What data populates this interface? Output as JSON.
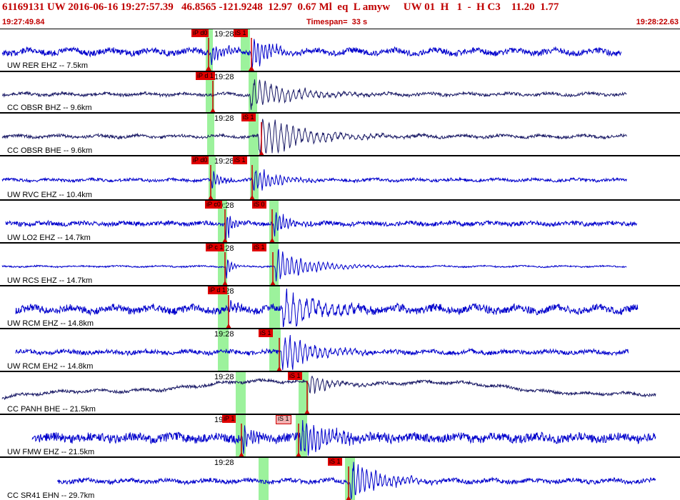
{
  "header": {
    "title": "61169131 UW 2016-06-16 19:27:57.39   46.8565 -121.9248  12.97  0.67 Ml  eq  L amyw     UW 01  H   1  -  H C3    11.20  1.77",
    "start_time": "19:27:49.84",
    "timespan": "Timespan=  33 s",
    "end_time": "19:28:22.63"
  },
  "colors": {
    "trace": "#0000cc",
    "trace_dark": "#1a1a66",
    "pick_flag": "#e00000",
    "pick_line": "#cc0000",
    "window_band": "#9cf29c",
    "header_text": "#c00000"
  },
  "minute_label": "19:28",
  "traces": [
    {
      "label": "UW RER EHZ -- 7.5km",
      "picks": [
        {
          "text": "iP d0"
        },
        {
          "text": "iS 1"
        }
      ]
    },
    {
      "label": "CC OBSR BHZ -- 9.6km",
      "picks": [
        {
          "text": "iP d 1"
        }
      ]
    },
    {
      "label": "CC OBSR BHE -- 9.6km",
      "picks": [
        {
          "text": "iS 1"
        }
      ]
    },
    {
      "label": "UW RVC EHZ -- 10.4km",
      "picks": [
        {
          "text": "iP d0"
        },
        {
          "text": "iS 1"
        }
      ]
    },
    {
      "label": "UW LO2 EHZ -- 14.7km",
      "picks": [
        {
          "text": "iP c0"
        },
        {
          "text": "iS 0"
        }
      ]
    },
    {
      "label": "UW RCS EHZ -- 14.7km",
      "picks": [
        {
          "text": "iP c 1"
        },
        {
          "text": "iS 1"
        }
      ]
    },
    {
      "label": "UW RCM EHZ -- 14.8km",
      "picks": [
        {
          "text": "iP d 1"
        }
      ]
    },
    {
      "label": "UW RCM EH2 -- 14.8km",
      "picks": [
        {
          "text": "iS 1"
        }
      ]
    },
    {
      "label": "CC PANH BHE -- 21.5km",
      "picks": [
        {
          "text": "iS 1"
        }
      ]
    },
    {
      "label": "UW FMW EHZ -- 21.5km",
      "picks": [
        {
          "text": "iP 1"
        },
        {
          "text": "iS 1"
        }
      ]
    },
    {
      "label": "CC SR41 EHN -- 29.7km",
      "picks": [
        {
          "text": "iS 1"
        }
      ]
    }
  ]
}
